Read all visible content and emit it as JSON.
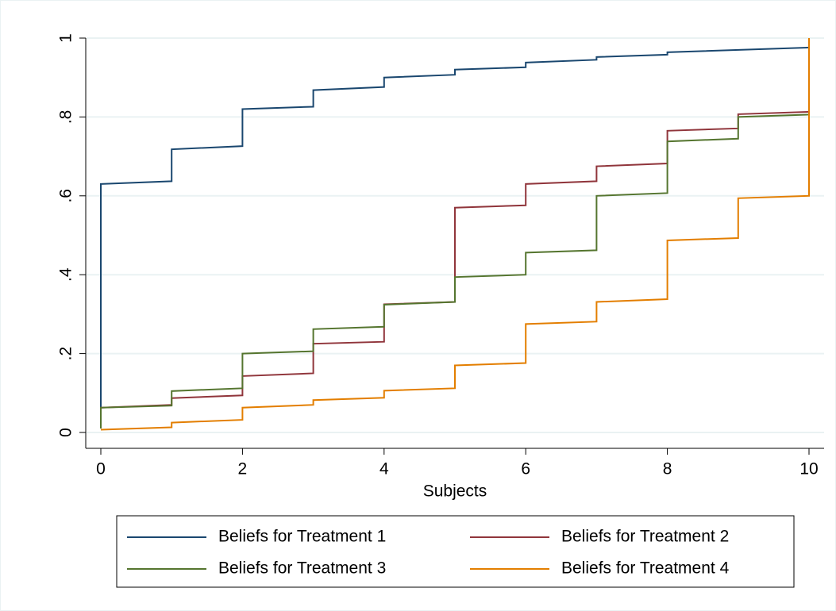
{
  "chart_data": {
    "type": "line",
    "xlabel": "Subjects",
    "xlim": [
      0,
      10
    ],
    "xticks": [
      0,
      2,
      4,
      6,
      8,
      10
    ],
    "ylim": [
      0,
      1
    ],
    "yticks": [
      0,
      {
        "value": 0.2,
        "label": ".2"
      },
      {
        "value": 0.4,
        "label": ".4"
      },
      {
        "value": 0.6,
        "label": ".6"
      },
      {
        "value": 0.8,
        "label": ".8"
      },
      1
    ],
    "grid": true,
    "legend": "bottom",
    "series": [
      {
        "name": "Beliefs for Treatment 1",
        "color": "#1a476f",
        "x": [
          0,
          0,
          1,
          1,
          2,
          2,
          3,
          3,
          4,
          4,
          5,
          5,
          6,
          6,
          7,
          7,
          8,
          8,
          10
        ],
        "values": [
          0.06,
          0.63,
          0.637,
          0.718,
          0.726,
          0.82,
          0.826,
          0.868,
          0.876,
          0.9,
          0.907,
          0.92,
          0.926,
          0.938,
          0.945,
          0.952,
          0.958,
          0.964,
          0.976
        ]
      },
      {
        "name": "Beliefs for Treatment 2",
        "color": "#90353b",
        "x": [
          0,
          1,
          1,
          2,
          2,
          3,
          3,
          4,
          4,
          5,
          5,
          6,
          6,
          7,
          7,
          8,
          8,
          9,
          9,
          10,
          10
        ],
        "values": [
          0.063,
          0.07,
          0.087,
          0.094,
          0.143,
          0.15,
          0.225,
          0.23,
          0.325,
          0.331,
          0.57,
          0.576,
          0.63,
          0.637,
          0.675,
          0.682,
          0.765,
          0.771,
          0.807,
          0.813,
          1
        ]
      },
      {
        "name": "Beliefs for Treatment 3",
        "color": "#55752f",
        "x": [
          0,
          0,
          1,
          1,
          2,
          2,
          3,
          3,
          4,
          4,
          5,
          5,
          6,
          6,
          7,
          7,
          8,
          8,
          9,
          9,
          10,
          10
        ],
        "values": [
          0.01,
          0.063,
          0.068,
          0.105,
          0.112,
          0.2,
          0.206,
          0.262,
          0.268,
          0.324,
          0.331,
          0.394,
          0.4,
          0.456,
          0.462,
          0.6,
          0.607,
          0.738,
          0.745,
          0.8,
          0.806,
          1
        ]
      },
      {
        "name": "Beliefs for Treatment 4",
        "color": "#e37e00",
        "x": [
          0,
          1,
          1,
          2,
          2,
          3,
          3,
          4,
          4,
          5,
          5,
          6,
          6,
          7,
          7,
          8,
          8,
          9,
          9,
          10,
          10
        ],
        "values": [
          0.007,
          0.013,
          0.025,
          0.032,
          0.063,
          0.07,
          0.082,
          0.088,
          0.106,
          0.112,
          0.17,
          0.176,
          0.275,
          0.281,
          0.331,
          0.338,
          0.487,
          0.493,
          0.594,
          0.6,
          1
        ]
      }
    ]
  }
}
